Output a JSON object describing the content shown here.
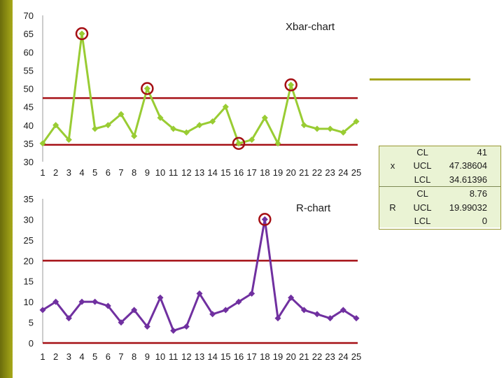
{
  "colors": {
    "sidebar": "#8c8e12",
    "xbar_line": "#99cc33",
    "r_line": "#7030a0",
    "limit_line": "#a50f14",
    "marker_circle": "#a50f14",
    "table_bg": "#eaf3d4"
  },
  "chart_data": [
    {
      "type": "line",
      "title": "Xbar-chart",
      "xlabel": "",
      "ylabel": "",
      "categories": [
        "1",
        "2",
        "3",
        "4",
        "5",
        "6",
        "7",
        "8",
        "9",
        "10",
        "11",
        "12",
        "13",
        "14",
        "15",
        "16",
        "17",
        "18",
        "19",
        "20",
        "21",
        "22",
        "23",
        "24",
        "25"
      ],
      "series": [
        {
          "values": [
            35,
            40,
            36,
            65,
            39,
            40,
            43,
            37,
            50,
            42,
            39,
            38,
            40,
            41,
            45,
            35,
            36,
            42,
            35,
            51,
            40,
            39,
            39,
            38,
            41
          ]
        }
      ],
      "limits": {
        "ucl": 47.38604,
        "lcl": 34.61396
      },
      "highlighted_points": [
        4,
        9,
        16,
        20
      ],
      "ylim": [
        30,
        70
      ],
      "yticks": [
        30,
        35,
        40,
        45,
        50,
        55,
        60,
        65,
        70
      ],
      "grid": false
    },
    {
      "type": "line",
      "title": "R-chart",
      "xlabel": "",
      "ylabel": "",
      "categories": [
        "1",
        "2",
        "3",
        "4",
        "5",
        "6",
        "7",
        "8",
        "9",
        "10",
        "11",
        "12",
        "13",
        "14",
        "15",
        "16",
        "17",
        "18",
        "19",
        "20",
        "21",
        "22",
        "23",
        "24",
        "25"
      ],
      "series": [
        {
          "values": [
            8,
            10,
            6,
            10,
            10,
            9,
            5,
            8,
            4,
            11,
            3,
            4,
            12,
            7,
            8,
            10,
            12,
            30,
            6,
            11,
            8,
            7,
            6,
            8,
            6
          ]
        }
      ],
      "limits": {
        "ucl": 19.99032,
        "lcl": 0
      },
      "highlighted_points": [
        18
      ],
      "ylim": [
        0,
        35
      ],
      "yticks": [
        0,
        5,
        10,
        15,
        20,
        25,
        30,
        35
      ],
      "grid": false
    }
  ],
  "stats_table": {
    "rows": [
      {
        "group": "x",
        "items": [
          {
            "label": "CL",
            "value": "41"
          },
          {
            "label": "UCL",
            "value": "47.38604"
          },
          {
            "label": "LCL",
            "value": "34.61396"
          }
        ]
      },
      {
        "group": "R",
        "items": [
          {
            "label": "CL",
            "value": "8.76"
          },
          {
            "label": "UCL",
            "value": "19.99032"
          },
          {
            "label": "LCL",
            "value": "0"
          }
        ]
      }
    ]
  }
}
